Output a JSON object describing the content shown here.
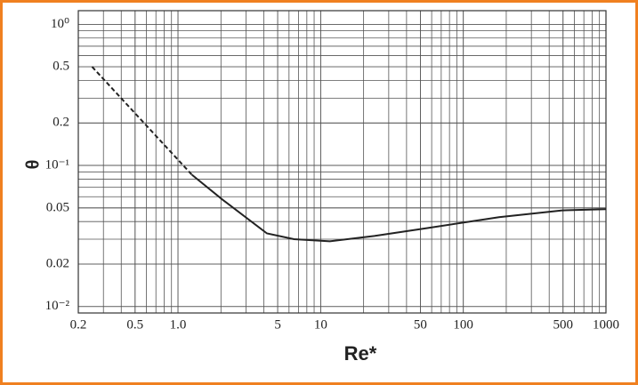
{
  "chart_data": {
    "type": "line",
    "x_label": "Re*",
    "y_label": "θ",
    "log_x": true,
    "log_y": true,
    "grid": true,
    "xlim": [
      0.2,
      1000
    ],
    "ylim": [
      0.009,
      1.25
    ],
    "xticks": [
      0.2,
      0.5,
      {
        "value": 1,
        "label": "1.0"
      },
      5,
      10,
      50,
      100,
      500,
      1000
    ],
    "yticks": [
      {
        "value": 1,
        "label": "10⁰"
      },
      0.5,
      0.2,
      {
        "value": 0.1,
        "label": "10⁻¹"
      },
      0.05,
      0.02,
      {
        "value": 0.01,
        "label": "10⁻²"
      }
    ],
    "series": [
      {
        "color": "#222",
        "dashed": true,
        "x": [
          0.25,
          1.25
        ],
        "values": [
          0.5,
          0.086
        ]
      },
      {
        "color": "#222",
        "dashed": false,
        "x": [
          1.25,
          2.06,
          4.2,
          6.5,
          11.6,
          23.8,
          56,
          178,
          494,
          1000
        ],
        "values": [
          0.086,
          0.057,
          0.033,
          0.03,
          0.029,
          0.0316,
          0.036,
          0.043,
          0.048,
          0.049
        ]
      }
    ]
  }
}
